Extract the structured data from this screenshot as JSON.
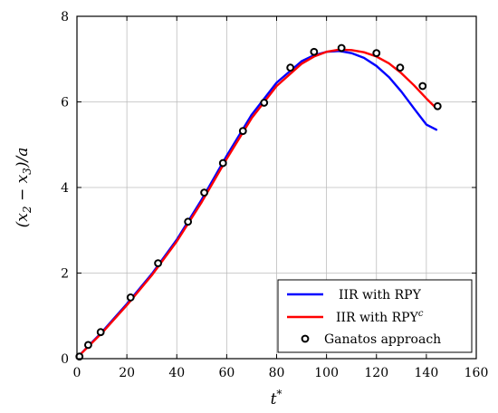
{
  "chart_data": {
    "type": "line",
    "xlabel_base": "t",
    "xlabel_sup": "*",
    "ylabel_parts": [
      "(x",
      "2",
      " − x",
      "3",
      ")/a"
    ],
    "xlim": [
      0,
      160
    ],
    "ylim": [
      0,
      8
    ],
    "xticks": [
      0,
      20,
      40,
      60,
      80,
      100,
      120,
      140,
      160
    ],
    "yticks": [
      0,
      2,
      4,
      6,
      8
    ],
    "grid": true,
    "legend_position": "bottom-right",
    "series": [
      {
        "name": "IIR with RPY",
        "style": "line",
        "color": "#0000ff",
        "x": [
          0,
          5,
          10,
          20,
          30,
          40,
          50,
          60,
          70,
          80,
          90,
          95,
          100,
          105,
          110,
          115,
          120,
          125,
          130,
          135,
          140,
          144
        ],
        "y": [
          0.02,
          0.32,
          0.62,
          1.28,
          1.98,
          2.78,
          3.72,
          4.74,
          5.7,
          6.45,
          6.95,
          7.09,
          7.17,
          7.19,
          7.14,
          7.03,
          6.84,
          6.58,
          6.24,
          5.85,
          5.47,
          5.35
        ]
      },
      {
        "name_base": "IIR with RPY",
        "name_sup": "c",
        "style": "line",
        "color": "#ff0000",
        "x": [
          0,
          5,
          10,
          20,
          30,
          40,
          50,
          60,
          70,
          80,
          90,
          95,
          100,
          105,
          110,
          115,
          120,
          125,
          130,
          135,
          140,
          144
        ],
        "y": [
          0.02,
          0.31,
          0.6,
          1.25,
          1.95,
          2.74,
          3.66,
          4.67,
          5.62,
          6.37,
          6.89,
          7.06,
          7.17,
          7.22,
          7.21,
          7.16,
          7.06,
          6.9,
          6.67,
          6.39,
          6.08,
          5.85
        ]
      },
      {
        "name": "Ganatos approach",
        "style": "markers",
        "color": "#000000",
        "x": [
          1,
          4.5,
          9.5,
          21.5,
          32.5,
          44.5,
          51,
          58.5,
          66.5,
          75,
          85.5,
          95,
          106,
          120,
          129.5,
          138.5,
          144.5
        ],
        "y": [
          0.05,
          0.32,
          0.62,
          1.43,
          2.23,
          3.2,
          3.88,
          4.57,
          5.32,
          5.98,
          6.8,
          7.17,
          7.26,
          7.14,
          6.8,
          6.37,
          5.9
        ]
      }
    ]
  }
}
